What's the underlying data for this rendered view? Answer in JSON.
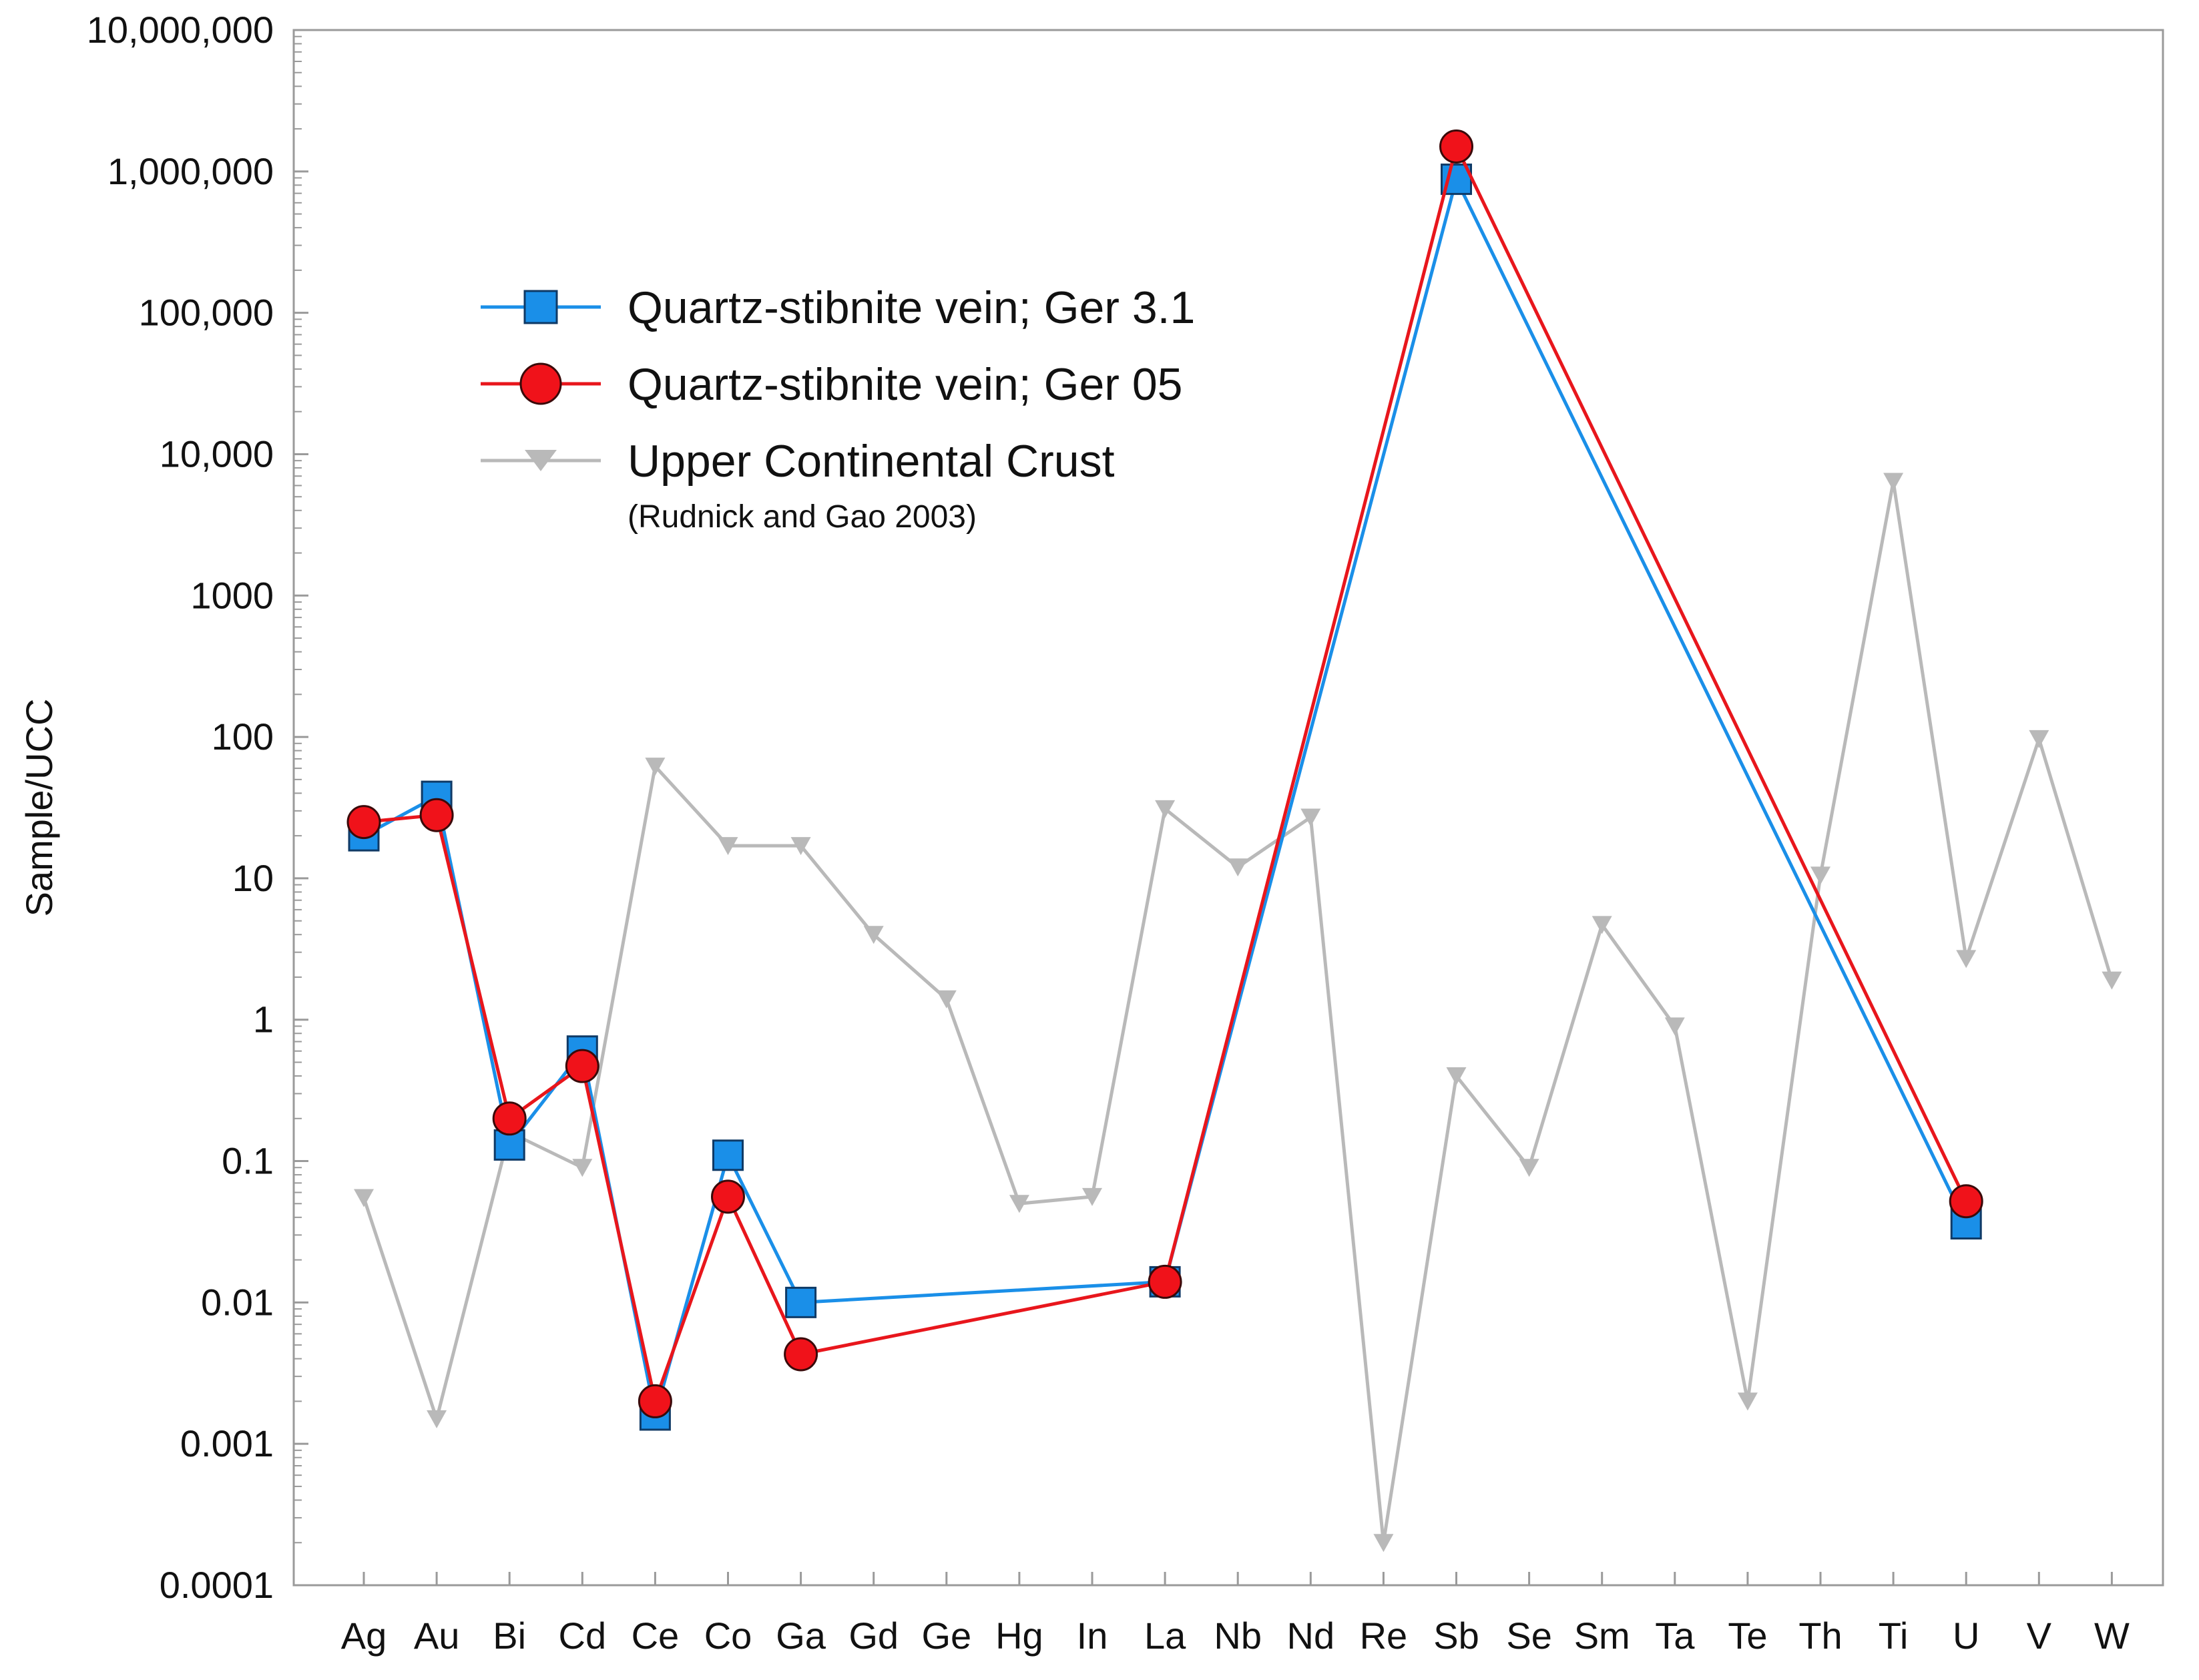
{
  "chart_data": {
    "type": "line",
    "ylabel": "Sample/UCC",
    "xlabel": "",
    "yscale": "log",
    "ylim": [
      0.0001,
      10000000
    ],
    "ytick_values": [
      0.0001,
      0.001,
      0.01,
      0.1,
      1,
      10,
      100,
      1000,
      10000,
      100000,
      1000000,
      10000000
    ],
    "ytick_labels": [
      "0.0001",
      "0.001",
      "0.01",
      "0.1",
      "1",
      "10",
      "100",
      "1000",
      "10,000",
      "100,000",
      "1,000,000",
      "10,000,000"
    ],
    "categories": [
      "Ag",
      "Au",
      "Bi",
      "Cd",
      "Ce",
      "Co",
      "Ga",
      "Gd",
      "Ge",
      "Hg",
      "In",
      "La",
      "Nb",
      "Nd",
      "Re",
      "Sb",
      "Se",
      "Sm",
      "Ta",
      "Te",
      "Th",
      "Ti",
      "U",
      "V",
      "W"
    ],
    "legend_position": "upper-left",
    "series": [
      {
        "name": "Quartz-stibnite vein; Ger 3.1",
        "color": "#1a8fe8",
        "marker": "square",
        "values": [
          20,
          38,
          0.13,
          0.6,
          0.0016,
          0.11,
          0.01,
          null,
          null,
          null,
          null,
          0.014,
          null,
          null,
          null,
          880000,
          null,
          null,
          null,
          null,
          null,
          null,
          0.036,
          null,
          null
        ]
      },
      {
        "name": "Quartz-stibnite vein; Ger 05",
        "color": "#e8161c",
        "marker": "circle",
        "values": [
          25,
          28,
          0.2,
          0.47,
          0.002,
          0.056,
          0.0043,
          null,
          null,
          null,
          null,
          0.014,
          null,
          null,
          null,
          1500000,
          null,
          null,
          null,
          null,
          null,
          null,
          0.052,
          null,
          null
        ]
      },
      {
        "name": "Upper Continental Crust",
        "note": "(Rudnick and Gao 2003)",
        "color": "#b9b9b9",
        "marker": "triangle-down",
        "values": [
          0.055,
          0.0015,
          0.16,
          0.09,
          62,
          17,
          17,
          4,
          1.4,
          0.05,
          0.056,
          31,
          12,
          27,
          0.0002,
          0.4,
          0.09,
          4.7,
          0.9,
          0.002,
          10.5,
          6400,
          2.7,
          97,
          1.9
        ]
      }
    ]
  }
}
